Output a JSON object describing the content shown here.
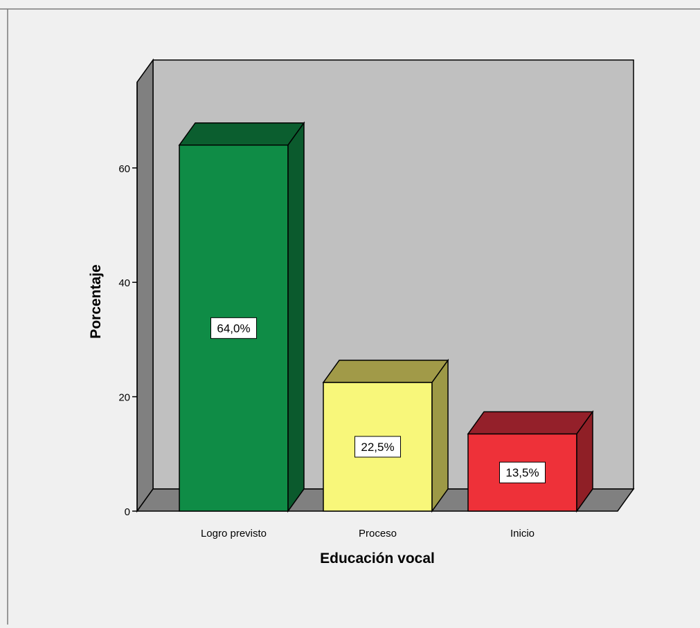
{
  "chart_data": {
    "type": "bar",
    "title": "",
    "xlabel": "Educación vocal",
    "ylabel": "Porcentaje",
    "categories": [
      "Logro previsto",
      "Proceso",
      "Inicio"
    ],
    "values": [
      64.0,
      22.5,
      13.5
    ],
    "data_labels": [
      "64,0%",
      "22,5%",
      "13,5%"
    ],
    "yticks": [
      0,
      20,
      40,
      60
    ],
    "ylim": [
      0,
      75
    ],
    "grid": false,
    "style": "3d",
    "colors": {
      "bars_front": [
        "#0f8c46",
        "#f8f77a",
        "#ee3139"
      ],
      "bars_top": [
        "#0b5e2f",
        "#a19a48",
        "#94202a"
      ],
      "bars_side": [
        "#0b5a2d",
        "#9d9946",
        "#8f1f26"
      ],
      "back_wall": "#c0c0c0",
      "side_wall": "#808080",
      "floor": "#808080",
      "background": "#f0f0f0"
    }
  }
}
